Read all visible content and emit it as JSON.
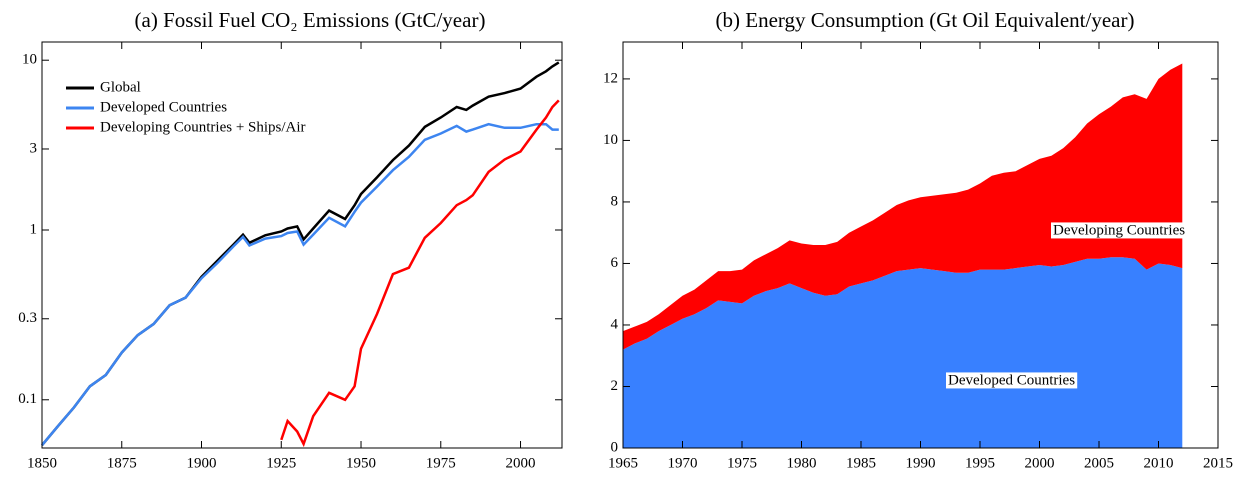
{
  "chart_data": [
    {
      "type": "line",
      "title": "(a) Fossil Fuel CO₂ Emissions (GtC/year)",
      "log_y": true,
      "legend": "upper left",
      "x": [
        1850,
        1855,
        1860,
        1865,
        1870,
        1875,
        1880,
        1885,
        1890,
        1895,
        1900,
        1905,
        1910,
        1913,
        1915,
        1920,
        1925,
        1927,
        1930,
        1932,
        1935,
        1940,
        1945,
        1948,
        1950,
        1955,
        1960,
        1965,
        1970,
        1975,
        1980,
        1983,
        1985,
        1990,
        1995,
        2000,
        2005,
        2008,
        2010,
        2012
      ],
      "series": [
        {
          "name": "Global",
          "color": "#000000",
          "values": [
            0.054,
            0.07,
            0.09,
            0.12,
            0.14,
            0.19,
            0.24,
            0.28,
            0.36,
            0.4,
            0.53,
            0.66,
            0.82,
            0.94,
            0.84,
            0.93,
            0.98,
            1.02,
            1.05,
            0.88,
            1.02,
            1.3,
            1.16,
            1.4,
            1.63,
            2.04,
            2.58,
            3.14,
            4.05,
            4.6,
            5.3,
            5.1,
            5.4,
            6.1,
            6.4,
            6.8,
            8.0,
            8.6,
            9.2,
            9.7
          ]
        },
        {
          "name": "Developed Countries",
          "color": "#3d85f0",
          "values": [
            0.054,
            0.07,
            0.09,
            0.12,
            0.14,
            0.19,
            0.24,
            0.28,
            0.36,
            0.4,
            0.52,
            0.64,
            0.8,
            0.91,
            0.81,
            0.89,
            0.92,
            0.96,
            0.98,
            0.82,
            0.94,
            1.18,
            1.05,
            1.28,
            1.45,
            1.8,
            2.25,
            2.7,
            3.4,
            3.7,
            4.1,
            3.8,
            3.9,
            4.2,
            4.0,
            4.0,
            4.2,
            4.2,
            3.9,
            3.9
          ]
        },
        {
          "name": "Developing Countries + Ships/Air",
          "color": "#ff0000",
          "values": [
            null,
            null,
            null,
            null,
            null,
            null,
            null,
            null,
            null,
            null,
            null,
            null,
            null,
            null,
            null,
            null,
            0.058,
            0.075,
            0.065,
            0.055,
            0.08,
            0.11,
            0.1,
            0.12,
            0.2,
            0.32,
            0.55,
            0.6,
            0.9,
            1.1,
            1.4,
            1.5,
            1.6,
            2.2,
            2.6,
            2.9,
            3.9,
            4.6,
            5.3,
            5.8
          ]
        }
      ],
      "xlim": [
        1850,
        2013
      ],
      "xticks": [
        1850,
        1875,
        1900,
        1925,
        1950,
        1975,
        2000
      ],
      "ylim": [
        0.052,
        12.8
      ],
      "yticks": [
        0.1,
        0.3,
        1,
        3,
        10
      ]
    },
    {
      "type": "stacked_area",
      "title": "(b)  Energy Consumption (Gt Oil Equivalent/year)",
      "x": [
        1965,
        1966,
        1967,
        1968,
        1969,
        1970,
        1971,
        1972,
        1973,
        1974,
        1975,
        1976,
        1977,
        1978,
        1979,
        1980,
        1981,
        1982,
        1983,
        1984,
        1985,
        1986,
        1987,
        1988,
        1989,
        1990,
        1991,
        1992,
        1993,
        1994,
        1995,
        1996,
        1997,
        1998,
        1999,
        2000,
        2001,
        2002,
        2003,
        2004,
        2005,
        2006,
        2007,
        2008,
        2009,
        2010,
        2011,
        2012
      ],
      "series": [
        {
          "name": "Developed Countries",
          "color": "#3880ff",
          "values": [
            3.2,
            3.4,
            3.55,
            3.8,
            4.0,
            4.2,
            4.35,
            4.55,
            4.8,
            4.75,
            4.7,
            4.95,
            5.1,
            5.2,
            5.35,
            5.2,
            5.05,
            4.95,
            5.0,
            5.25,
            5.35,
            5.45,
            5.6,
            5.75,
            5.8,
            5.85,
            5.8,
            5.75,
            5.7,
            5.7,
            5.8,
            5.8,
            5.8,
            5.85,
            5.9,
            5.95,
            5.9,
            5.95,
            6.05,
            6.15,
            6.15,
            6.2,
            6.2,
            6.15,
            5.8,
            6.0,
            5.95,
            5.85
          ]
        },
        {
          "name": "Developing Countries",
          "color": "#ff0000",
          "values": [
            0.6,
            0.55,
            0.55,
            0.55,
            0.65,
            0.75,
            0.8,
            0.9,
            0.95,
            1.0,
            1.1,
            1.15,
            1.2,
            1.3,
            1.4,
            1.45,
            1.55,
            1.65,
            1.7,
            1.75,
            1.85,
            1.95,
            2.05,
            2.15,
            2.25,
            2.3,
            2.4,
            2.5,
            2.6,
            2.7,
            2.8,
            3.05,
            3.15,
            3.15,
            3.3,
            3.45,
            3.6,
            3.8,
            4.05,
            4.4,
            4.7,
            4.9,
            5.2,
            5.35,
            5.55,
            6.0,
            6.35,
            6.65
          ]
        }
      ],
      "xlim": [
        1965,
        2015
      ],
      "xticks": [
        1965,
        1970,
        1975,
        1980,
        1985,
        1990,
        1995,
        2000,
        2005,
        2010,
        2015
      ],
      "ylim": [
        0,
        13.2
      ],
      "yticks": [
        0,
        2,
        4,
        6,
        8,
        10,
        12
      ]
    }
  ]
}
